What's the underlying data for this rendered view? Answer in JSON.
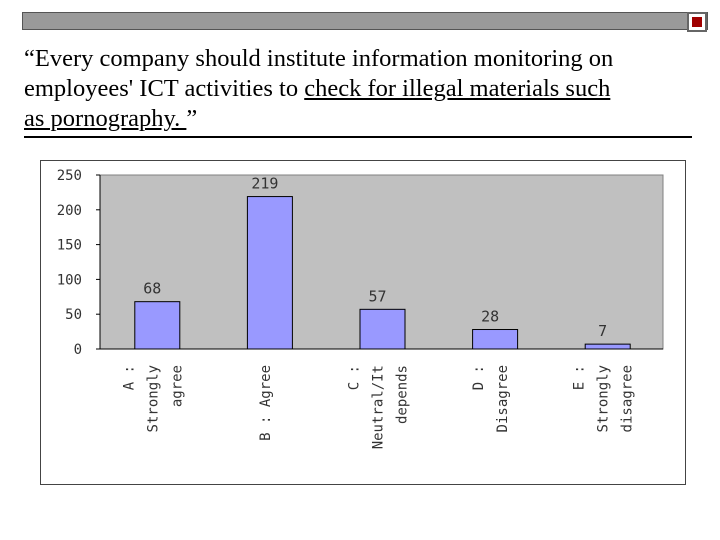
{
  "slide": {
    "quote_lines": [
      {
        "parts": [
          {
            "text": "“Every company should institute information monitoring on",
            "u": false
          }
        ]
      },
      {
        "parts": [
          {
            "text": "employees' ICT activities to ",
            "u": false
          },
          {
            "text": "check for illegal materials such",
            "u": true
          }
        ]
      },
      {
        "parts": [
          {
            "text": "as pornography. ",
            "u": true
          },
          {
            "text": "”",
            "u": false
          }
        ]
      }
    ]
  },
  "colors": {
    "bar_fill": "#9999ff",
    "plot_bg": "#c0c0c0",
    "top_bar": "#9a9a9a",
    "top_box_accent": "#a00000"
  },
  "chart_data": {
    "type": "bar",
    "categories": [
      [
        "A :",
        "Strongly",
        "agree"
      ],
      [
        "B : Agree"
      ],
      [
        "C :",
        "Neutral/It",
        "depends"
      ],
      [
        "D :",
        "Disagree"
      ],
      [
        "E :",
        "Strongly",
        "disagree"
      ]
    ],
    "values": [
      68,
      219,
      57,
      28,
      7
    ],
    "value_labels": [
      "68",
      "219",
      "57",
      "28",
      "7"
    ],
    "yticks": [
      "0",
      "50",
      "100",
      "150",
      "200",
      "250"
    ],
    "ylim": [
      0,
      250
    ],
    "grid": false,
    "legend": "none"
  }
}
